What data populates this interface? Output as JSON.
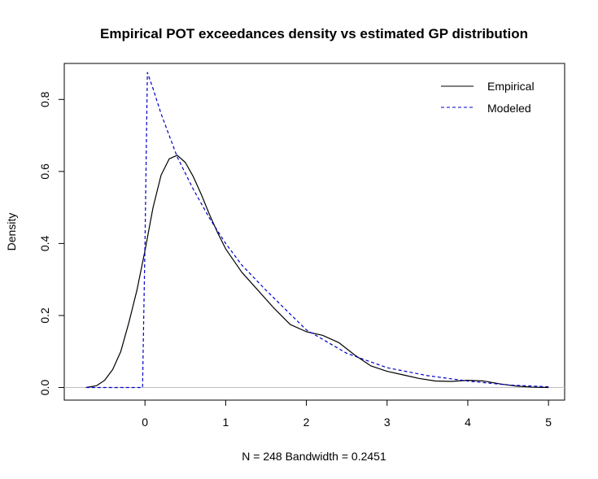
{
  "chart_data": {
    "type": "line",
    "title": "Empirical POT exceedances density vs estimated GP distribution",
    "xlabel": "N = 248   Bandwidth = 0.2451",
    "ylabel": "Density",
    "xlim": [
      -1.0,
      5.2
    ],
    "ylim": [
      -0.035,
      0.9
    ],
    "x_ticks": [
      0,
      1,
      2,
      3,
      4,
      5
    ],
    "y_ticks": [
      0.0,
      0.2,
      0.4,
      0.6,
      0.8
    ],
    "x_tick_labels": [
      "0",
      "1",
      "2",
      "3",
      "4",
      "5"
    ],
    "y_tick_labels": [
      "0.0",
      "0.2",
      "0.4",
      "0.6",
      "0.8"
    ],
    "grid": false,
    "legend": {
      "position": "top-right",
      "entries": [
        "Empirical",
        "Modeled"
      ]
    },
    "reference_line": {
      "y": 0,
      "color": "#bebebe"
    },
    "series": [
      {
        "name": "Empirical",
        "style": "solid",
        "color": "#000000",
        "x": [
          -0.73,
          -0.6,
          -0.5,
          -0.4,
          -0.3,
          -0.2,
          -0.1,
          0.0,
          0.1,
          0.2,
          0.3,
          0.4,
          0.5,
          0.6,
          0.7,
          0.8,
          0.9,
          1.0,
          1.2,
          1.4,
          1.6,
          1.8,
          2.0,
          2.2,
          2.4,
          2.6,
          2.8,
          3.0,
          3.2,
          3.4,
          3.6,
          3.8,
          4.0,
          4.2,
          4.4,
          4.6,
          4.8,
          5.0
        ],
        "y": [
          0.0,
          0.005,
          0.02,
          0.05,
          0.1,
          0.18,
          0.27,
          0.38,
          0.5,
          0.59,
          0.635,
          0.645,
          0.625,
          0.585,
          0.535,
          0.48,
          0.43,
          0.385,
          0.32,
          0.27,
          0.22,
          0.175,
          0.155,
          0.145,
          0.125,
          0.09,
          0.06,
          0.045,
          0.035,
          0.025,
          0.018,
          0.017,
          0.02,
          0.018,
          0.01,
          0.004,
          0.001,
          0.0
        ]
      },
      {
        "name": "Modeled",
        "style": "dashed",
        "color": "#0000cc",
        "x": [
          -0.73,
          -0.03,
          0.0,
          0.03,
          0.1,
          0.2,
          0.3,
          0.4,
          0.5,
          0.6,
          0.8,
          1.0,
          1.2,
          1.5,
          2.0,
          2.5,
          3.0,
          3.5,
          4.0,
          4.5,
          5.0
        ],
        "y": [
          0.0,
          0.0,
          0.4,
          0.875,
          0.83,
          0.76,
          0.7,
          0.64,
          0.595,
          0.55,
          0.47,
          0.4,
          0.34,
          0.27,
          0.16,
          0.095,
          0.055,
          0.033,
          0.018,
          0.007,
          0.002
        ]
      }
    ]
  }
}
